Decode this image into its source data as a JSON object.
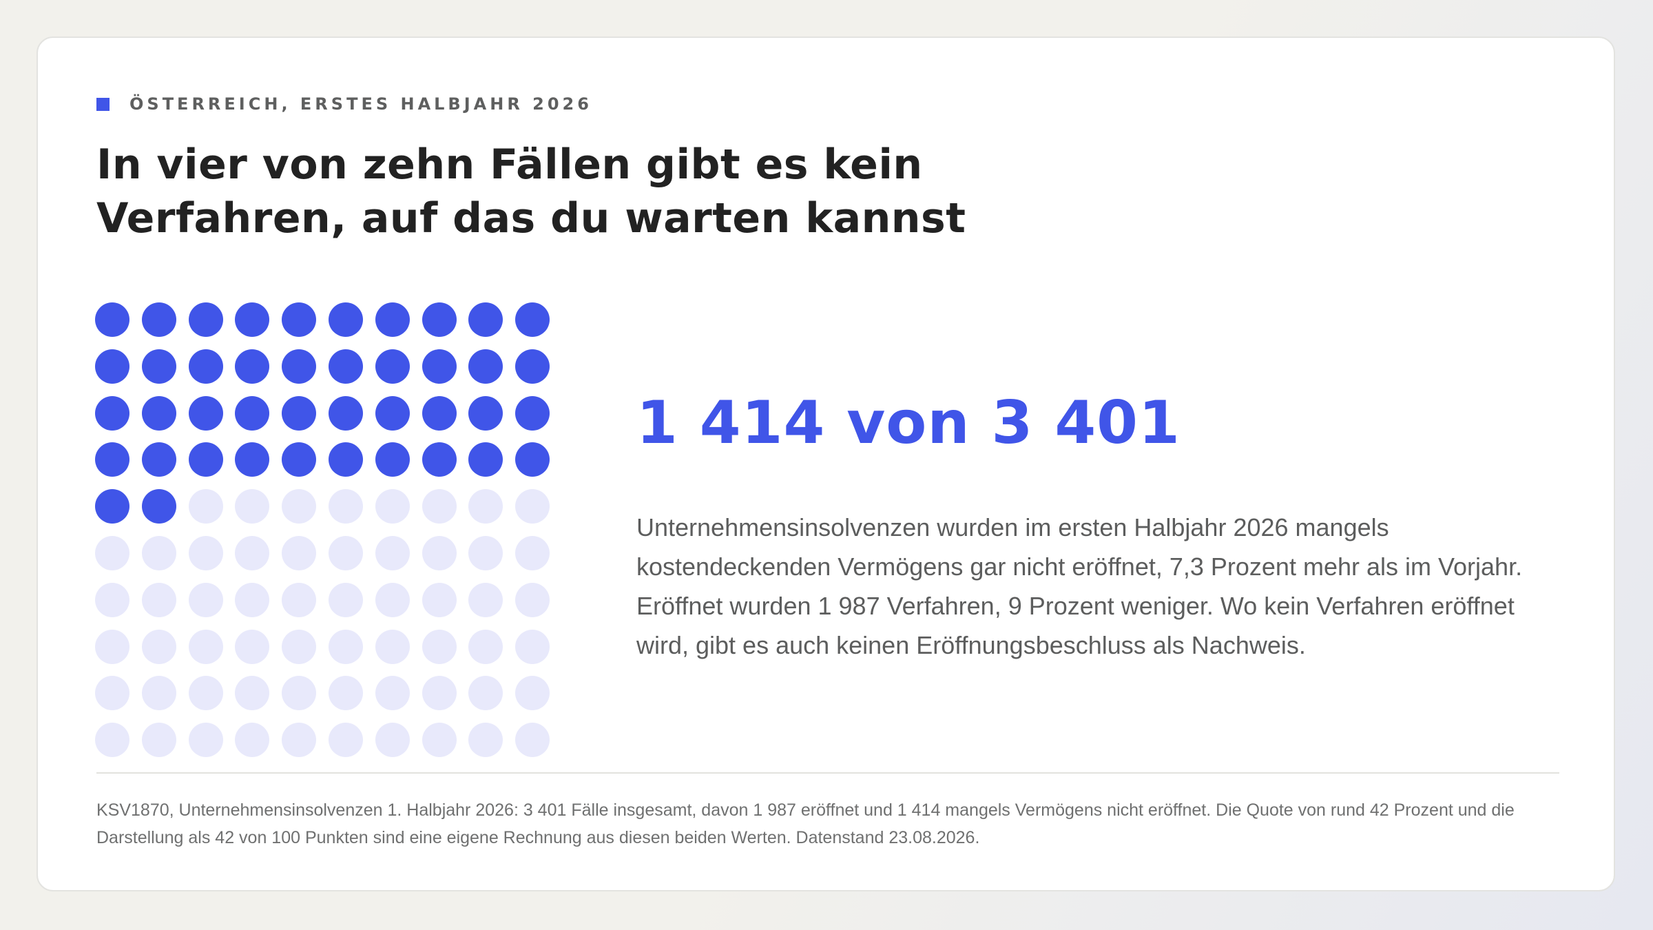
{
  "header": {
    "eyebrow": "ÖSTERREICH, ERSTES HALBJAHR 2026",
    "title_line1": "In vier von zehn Fällen gibt es kein",
    "title_line2": "Verfahren, auf das du warten kannst"
  },
  "highlight": {
    "headline": "1 414 von 3 401",
    "body": "Unternehmensinsolvenzen wurden im ersten Halbjahr 2026 mangels kostendeckenden Vermögens gar nicht eröffnet, 7,3 Prozent mehr als im Vorjahr. Eröffnet wurden 1 987 Verfahren, 9 Prozent weniger. Wo kein Verfahren eröffnet wird, gibt es auch keinen Eröffnungsbeschluss als Nachweis."
  },
  "source": {
    "text": "KSV1870, Unternehmensinsolvenzen 1. Halbjahr 2026: 3 401 Fälle insgesamt, davon 1 987 eröffnet und 1 414 mangels Vermögens nicht eröffnet. Die Quote von rund 42 Prozent und die Darstellung als 42 von 100 Punkten sind eine eigene Rechnung aus diesen beiden Werten. Datenstand 23.08.2026."
  },
  "colors": {
    "accent": "#4055e8",
    "muted_dot": "#e8e9fb",
    "title": "#222222",
    "body": "#5c5d5d"
  },
  "chart_data": {
    "type": "waffle",
    "rows": 10,
    "columns": 10,
    "total": 100,
    "filled": 42,
    "filled_color": "#4055e8",
    "empty_color": "#e8e9fb"
  }
}
